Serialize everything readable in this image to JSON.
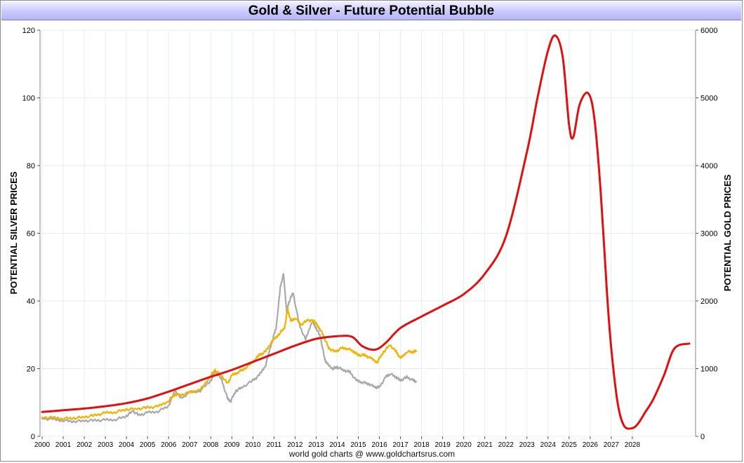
{
  "title": "Gold & Silver - Future Potential Bubble",
  "credit": "world gold charts @ www.goldchartsrus.com",
  "colors": {
    "silver_history": "#a9a9a9",
    "gold_history": "#f2b200",
    "projection": "#e01010",
    "grid": "#e6eef2"
  },
  "chart_data": {
    "type": "line",
    "title": "Gold & Silver - Future Potential Bubble",
    "xlabel": "",
    "y_left_label": "POTENTIAL SILVER PRICES",
    "y_right_label": "POTENTIAL GOLD PRICES",
    "xlim": [
      1999.9,
      2031.0
    ],
    "y_left_lim": [
      0,
      120
    ],
    "y_right_lim": [
      0,
      6000
    ],
    "x_ticks": [
      2000,
      2001,
      2002,
      2003,
      2004,
      2005,
      2006,
      2007,
      2008,
      2009,
      2010,
      2011,
      2012,
      2013,
      2014,
      2015,
      2016,
      2017,
      2018,
      2019,
      2020,
      2021,
      2022,
      2023,
      2024,
      2025,
      2026,
      2027,
      2028
    ],
    "y_left_ticks": [
      0,
      20,
      40,
      60,
      80,
      100,
      120
    ],
    "y_right_ticks": [
      0,
      1000,
      2000,
      3000,
      4000,
      5000,
      6000
    ],
    "grid": true,
    "series": [
      {
        "axis": "left",
        "color": "#a9a9a9",
        "x": [
          2000.0,
          2000.5,
          2001.0,
          2001.5,
          2002.0,
          2002.5,
          2003.0,
          2003.5,
          2004.0,
          2004.3,
          2004.6,
          2005.0,
          2005.5,
          2006.0,
          2006.3,
          2006.6,
          2007.0,
          2007.5,
          2008.0,
          2008.2,
          2008.5,
          2008.8,
          2008.95,
          2009.2,
          2009.5,
          2010.0,
          2010.3,
          2010.6,
          2010.9,
          2011.1,
          2011.3,
          2011.45,
          2011.6,
          2011.7,
          2011.9,
          2012.2,
          2012.5,
          2012.8,
          2013.0,
          2013.2,
          2013.4,
          2013.5,
          2013.8,
          2014.0,
          2014.3,
          2014.6,
          2014.9,
          2015.2,
          2015.5,
          2015.8,
          2016.0,
          2016.3,
          2016.5,
          2016.8,
          2017.0,
          2017.3,
          2017.6,
          2017.75
        ],
        "values": [
          5.3,
          5.0,
          4.7,
          4.4,
          4.6,
          4.7,
          4.8,
          5.0,
          6.0,
          7.5,
          6.2,
          7.0,
          7.4,
          9.0,
          13.5,
          11.2,
          13.0,
          13.5,
          16.5,
          19.0,
          17.0,
          11.0,
          10.5,
          13.5,
          14.5,
          16.5,
          18.0,
          21.0,
          28.0,
          32.0,
          44.0,
          48.0,
          37.0,
          39.5,
          42.5,
          33.0,
          28.5,
          34.0,
          32.0,
          29.5,
          23.0,
          21.5,
          20.0,
          20.5,
          19.5,
          19.0,
          16.5,
          16.0,
          15.5,
          14.5,
          14.5,
          17.5,
          18.5,
          17.5,
          16.5,
          17.5,
          16.5,
          16.2
        ]
      },
      {
        "axis": "right",
        "color": "#f2b200",
        "x": [
          2000.0,
          2000.5,
          2001.0,
          2001.5,
          2002.0,
          2002.5,
          2003.0,
          2003.5,
          2004.0,
          2004.5,
          2005.0,
          2005.5,
          2006.0,
          2006.3,
          2006.6,
          2007.0,
          2007.5,
          2008.0,
          2008.2,
          2008.5,
          2008.8,
          2009.0,
          2009.3,
          2009.6,
          2010.0,
          2010.3,
          2010.6,
          2010.9,
          2011.2,
          2011.5,
          2011.65,
          2011.8,
          2012.0,
          2012.3,
          2012.6,
          2012.9,
          2013.0,
          2013.2,
          2013.4,
          2013.6,
          2013.9,
          2014.2,
          2014.5,
          2014.8,
          2015.0,
          2015.3,
          2015.6,
          2015.9,
          2016.2,
          2016.5,
          2016.8,
          2017.0,
          2017.3,
          2017.6,
          2017.75
        ],
        "values": [
          280,
          275,
          265,
          270,
          285,
          310,
          345,
          360,
          400,
          405,
          425,
          440,
          525,
          620,
          610,
          650,
          680,
          900,
          980,
          900,
          780,
          900,
          950,
          1000,
          1100,
          1200,
          1250,
          1400,
          1500,
          1600,
          1880,
          1700,
          1750,
          1650,
          1720,
          1700,
          1660,
          1580,
          1450,
          1300,
          1250,
          1300,
          1300,
          1250,
          1200,
          1200,
          1150,
          1100,
          1250,
          1350,
          1250,
          1150,
          1250,
          1250,
          1260
        ]
      },
      {
        "axis": "right",
        "color": "#e01010",
        "x": [
          2000.0,
          2001.0,
          2002.0,
          2003.0,
          2004.0,
          2005.0,
          2006.0,
          2007.0,
          2008.0,
          2009.0,
          2010.0,
          2011.0,
          2012.0,
          2013.0,
          2014.0,
          2014.7,
          2015.2,
          2015.8,
          2016.3,
          2017.0,
          2018.0,
          2019.0,
          2020.0,
          2021.0,
          2022.0,
          2023.0,
          2023.5,
          2024.0,
          2024.35,
          2024.7,
          2025.0,
          2025.2,
          2025.5,
          2025.9,
          2026.2,
          2026.5,
          2026.8,
          2027.0,
          2027.3,
          2027.6,
          2028.0,
          2028.3,
          2028.6,
          2029.0,
          2029.5,
          2030.0,
          2030.7
        ],
        "values": [
          360,
          385,
          410,
          445,
          490,
          560,
          660,
          770,
          880,
          980,
          1100,
          1220,
          1340,
          1440,
          1480,
          1470,
          1330,
          1280,
          1380,
          1600,
          1770,
          1930,
          2100,
          2400,
          2950,
          4200,
          5000,
          5700,
          5920,
          5600,
          4600,
          4420,
          4900,
          5070,
          4700,
          3600,
          2100,
          1300,
          500,
          160,
          120,
          200,
          350,
          550,
          900,
          1300,
          1370
        ]
      }
    ]
  }
}
